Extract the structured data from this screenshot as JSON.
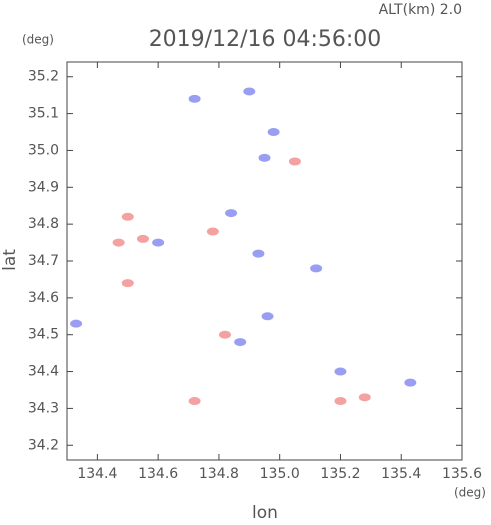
{
  "chart_data": {
    "type": "scatter",
    "annotation": "ALT(km) 2.0",
    "title": "2019/12/16 04:56:00",
    "y_unit": "(deg)",
    "x_unit": "(deg)",
    "xlabel": "lon",
    "ylabel": "lat",
    "xlim": [
      134.3,
      135.6
    ],
    "ylim": [
      34.16,
      35.24
    ],
    "xticks": [
      134.4,
      134.6,
      134.8,
      {
        "value": 135,
        "label": "135.0"
      },
      135.2,
      135.4,
      135.6
    ],
    "yticks": [
      34.2,
      34.3,
      34.4,
      34.5,
      34.6,
      34.7,
      34.8,
      34.9,
      {
        "value": 35,
        "label": "35.0"
      },
      35.1,
      35.2
    ],
    "series": [
      {
        "color": "#7f86f0",
        "x": [
          134.72,
          134.9,
          134.98,
          134.95,
          134.84,
          134.6,
          134.93,
          135.12,
          134.33,
          134.96,
          135.2,
          135.43,
          134.87
        ],
        "y": [
          35.14,
          35.16,
          35.05,
          34.98,
          34.83,
          34.75,
          34.72,
          34.68,
          34.53,
          34.55,
          34.4,
          34.37,
          34.48
        ]
      },
      {
        "color": "#f08a8a",
        "x": [
          134.5,
          134.47,
          134.78,
          134.5,
          134.72,
          135.05,
          134.82,
          135.28,
          135.2,
          134.55
        ],
        "y": [
          34.82,
          34.75,
          34.78,
          34.64,
          34.32,
          34.97,
          34.5,
          34.33,
          34.32,
          34.76
        ]
      }
    ]
  }
}
